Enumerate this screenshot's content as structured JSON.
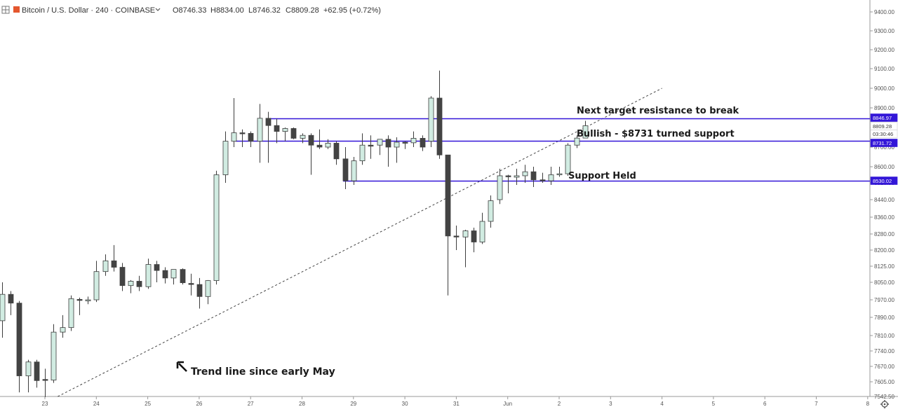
{
  "header": {
    "symbol": "Bitcoin / U.S. Dollar · 240 · COINBASE",
    "open": "O8746.33",
    "high": "H8834.00",
    "low": "L8746.32",
    "close": "C8809.28",
    "change": "+62.95 (+0.72%)"
  },
  "colors": {
    "up_fill": "#d1ece2",
    "up_border": "#3d3d3d",
    "down_fill": "#434343",
    "level_line": "#3316d8",
    "level_tag": "#3316d8",
    "trend_line": "#444444",
    "price_tag": "#ffffff"
  },
  "icons": [
    "crosshair-icon",
    "settings-gear-icon",
    "dropdown-chevron-icon",
    "trend-arrow-icon"
  ],
  "chart_data": {
    "type": "candlestick",
    "title": "Bitcoin / U.S. Dollar · 240 · COINBASE",
    "y_axis": {
      "ticks": [
        "9400.00",
        "9300.00",
        "9200.00",
        "9100.00",
        "9000.00",
        "8900.00",
        "8800.00",
        "8700.00",
        "8600.00",
        "8520.00",
        "8440.00",
        "8360.00",
        "8280.00",
        "8200.00",
        "8125.00",
        "8050.00",
        "7970.00",
        "7890.00",
        "7810.00",
        "7740.00",
        "7670.00",
        "7605.00",
        "7542.50"
      ]
    },
    "x_axis": {
      "ticks": [
        "23",
        "24",
        "25",
        "26",
        "27",
        "28",
        "29",
        "30",
        "31",
        "Jun",
        "2",
        "3",
        "4",
        "5",
        "6",
        "7",
        "8"
      ]
    },
    "ylim": [
      7542.5,
      9450
    ],
    "grid": false,
    "price_tags": [
      {
        "label": "8846.97",
        "style": "level"
      },
      {
        "label": "8809.28",
        "style": "last"
      },
      {
        "label": "03:30:46",
        "style": "timer"
      },
      {
        "label": "8731.72",
        "style": "level"
      },
      {
        "label": "8530.02",
        "style": "level"
      }
    ],
    "levels": [
      {
        "value": 8846.97,
        "start_day": 27.3
      },
      {
        "value": 8731.72,
        "start_day": 26.7
      },
      {
        "value": 8530.02,
        "start_day": 28.8
      }
    ],
    "trend_line": {
      "from": {
        "day": 23.25,
        "price": 7542.5
      },
      "to": {
        "day": 35.0,
        "price": 9000
      }
    },
    "annotations": [
      {
        "text": "Next target resistance to break"
      },
      {
        "text": "Bullish - $8731 turned support"
      },
      {
        "text": "Support Held"
      },
      {
        "text": "Trend line since early May"
      }
    ],
    "candles": [
      {
        "o": 7875,
        "h": 8050,
        "l": 7800,
        "c": 7995
      },
      {
        "o": 7995,
        "h": 8010,
        "l": 7900,
        "c": 7955
      },
      {
        "o": 7955,
        "h": 7965,
        "l": 7560,
        "c": 7630
      },
      {
        "o": 7630,
        "h": 7700,
        "l": 7560,
        "c": 7690
      },
      {
        "o": 7690,
        "h": 7700,
        "l": 7580,
        "c": 7610
      },
      {
        "o": 7615,
        "h": 7660,
        "l": 7540,
        "c": 7612
      },
      {
        "o": 7612,
        "h": 7860,
        "l": 7600,
        "c": 7825
      },
      {
        "o": 7825,
        "h": 7900,
        "l": 7800,
        "c": 7845
      },
      {
        "o": 7845,
        "h": 7990,
        "l": 7830,
        "c": 7975
      },
      {
        "o": 7972,
        "h": 7980,
        "l": 7900,
        "c": 7968
      },
      {
        "o": 7968,
        "h": 7985,
        "l": 7950,
        "c": 7970
      },
      {
        "o": 7970,
        "h": 8150,
        "l": 7960,
        "c": 8100
      },
      {
        "o": 8100,
        "h": 8180,
        "l": 8080,
        "c": 8150
      },
      {
        "o": 8150,
        "h": 8225,
        "l": 8100,
        "c": 8120
      },
      {
        "o": 8120,
        "h": 8140,
        "l": 8010,
        "c": 8035
      },
      {
        "o": 8035,
        "h": 8060,
        "l": 8000,
        "c": 8055
      },
      {
        "o": 8055,
        "h": 8080,
        "l": 8010,
        "c": 8030
      },
      {
        "o": 8030,
        "h": 8160,
        "l": 8020,
        "c": 8133
      },
      {
        "o": 8133,
        "h": 8150,
        "l": 8050,
        "c": 8105
      },
      {
        "o": 8105,
        "h": 8120,
        "l": 8045,
        "c": 8070
      },
      {
        "o": 8070,
        "h": 8110,
        "l": 8040,
        "c": 8110
      },
      {
        "o": 8110,
        "h": 8115,
        "l": 8040,
        "c": 8048
      },
      {
        "o": 8045,
        "h": 8090,
        "l": 7990,
        "c": 8040
      },
      {
        "o": 8040,
        "h": 8070,
        "l": 7930,
        "c": 7985
      },
      {
        "o": 7985,
        "h": 8060,
        "l": 7950,
        "c": 8058
      },
      {
        "o": 8058,
        "h": 8580,
        "l": 8040,
        "c": 8560
      },
      {
        "o": 8560,
        "h": 8780,
        "l": 8520,
        "c": 8730
      },
      {
        "o": 8730,
        "h": 8950,
        "l": 8700,
        "c": 8773
      },
      {
        "o": 8773,
        "h": 8790,
        "l": 8700,
        "c": 8770
      },
      {
        "o": 8770,
        "h": 8780,
        "l": 8700,
        "c": 8730
      },
      {
        "o": 8730,
        "h": 8920,
        "l": 8620,
        "c": 8847
      },
      {
        "o": 8847,
        "h": 8880,
        "l": 8620,
        "c": 8810
      },
      {
        "o": 8810,
        "h": 8845,
        "l": 8720,
        "c": 8780
      },
      {
        "o": 8780,
        "h": 8800,
        "l": 8730,
        "c": 8795
      },
      {
        "o": 8795,
        "h": 8800,
        "l": 8740,
        "c": 8745
      },
      {
        "o": 8745,
        "h": 8770,
        "l": 8720,
        "c": 8760
      },
      {
        "o": 8760,
        "h": 8770,
        "l": 8560,
        "c": 8710
      },
      {
        "o": 8710,
        "h": 8790,
        "l": 8690,
        "c": 8700
      },
      {
        "o": 8700,
        "h": 8740,
        "l": 8690,
        "c": 8720
      },
      {
        "o": 8720,
        "h": 8730,
        "l": 8610,
        "c": 8640
      },
      {
        "o": 8640,
        "h": 8700,
        "l": 8490,
        "c": 8530
      },
      {
        "o": 8530,
        "h": 8650,
        "l": 8510,
        "c": 8630
      },
      {
        "o": 8630,
        "h": 8770,
        "l": 8610,
        "c": 8710
      },
      {
        "o": 8710,
        "h": 8760,
        "l": 8640,
        "c": 8708
      },
      {
        "o": 8710,
        "h": 8730,
        "l": 8660,
        "c": 8740
      },
      {
        "o": 8740,
        "h": 8760,
        "l": 8600,
        "c": 8700
      },
      {
        "o": 8700,
        "h": 8750,
        "l": 8620,
        "c": 8725
      },
      {
        "o": 8725,
        "h": 8730,
        "l": 8690,
        "c": 8722
      },
      {
        "o": 8722,
        "h": 8780,
        "l": 8700,
        "c": 8745
      },
      {
        "o": 8745,
        "h": 8760,
        "l": 8680,
        "c": 8700
      },
      {
        "o": 8730,
        "h": 8960,
        "l": 8700,
        "c": 8950
      },
      {
        "o": 8950,
        "h": 9090,
        "l": 8640,
        "c": 8660
      },
      {
        "o": 8660,
        "h": 8660,
        "l": 7990,
        "c": 8270
      },
      {
        "o": 8270,
        "h": 8320,
        "l": 8200,
        "c": 8265
      },
      {
        "o": 8265,
        "h": 8300,
        "l": 8120,
        "c": 8295
      },
      {
        "o": 8295,
        "h": 8310,
        "l": 8190,
        "c": 8240
      },
      {
        "o": 8240,
        "h": 8380,
        "l": 8230,
        "c": 8340
      },
      {
        "o": 8340,
        "h": 8460,
        "l": 8310,
        "c": 8435
      },
      {
        "o": 8440,
        "h": 8590,
        "l": 8420,
        "c": 8555
      },
      {
        "o": 8555,
        "h": 8560,
        "l": 8470,
        "c": 8550
      },
      {
        "o": 8548,
        "h": 8590,
        "l": 8510,
        "c": 8555
      },
      {
        "o": 8555,
        "h": 8610,
        "l": 8520,
        "c": 8575
      },
      {
        "o": 8575,
        "h": 8600,
        "l": 8500,
        "c": 8535
      },
      {
        "o": 8535,
        "h": 8570,
        "l": 8520,
        "c": 8530
      },
      {
        "o": 8530,
        "h": 8600,
        "l": 8510,
        "c": 8560
      },
      {
        "o": 8560,
        "h": 8600,
        "l": 8550,
        "c": 8565
      },
      {
        "o": 8565,
        "h": 8720,
        "l": 8555,
        "c": 8710
      },
      {
        "o": 8710,
        "h": 8760,
        "l": 8695,
        "c": 8746
      },
      {
        "o": 8746,
        "h": 8834,
        "l": 8746,
        "c": 8809
      }
    ]
  }
}
